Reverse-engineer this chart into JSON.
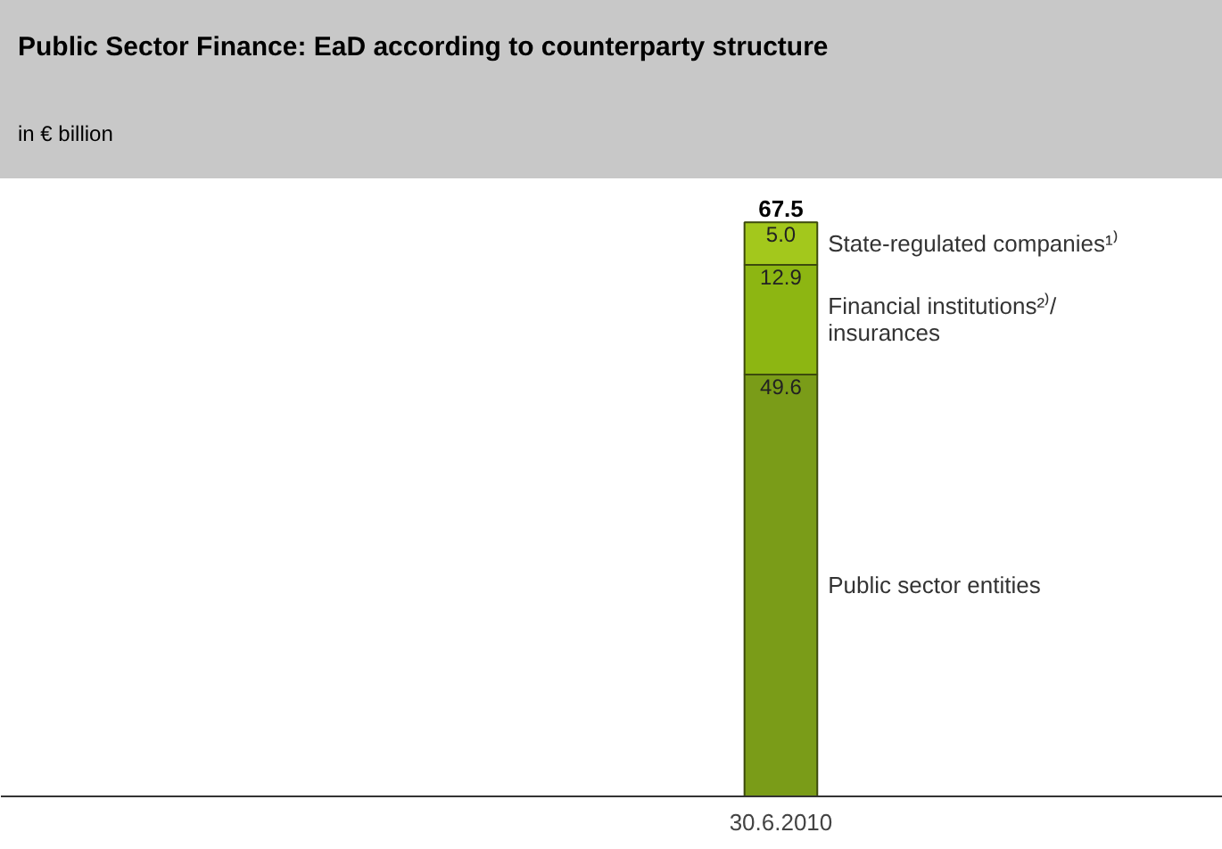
{
  "chart_data": {
    "type": "bar",
    "title": "Public Sector Finance: EaD according to counterparty structure",
    "subtitle": "in € billion",
    "categories": [
      "30.6.2010"
    ],
    "stacked": true,
    "totals": [
      "67.5"
    ],
    "grid": false,
    "series": [
      {
        "name": "Public sector entities",
        "color": "#7a9c18",
        "values": [
          49.6
        ],
        "value_labels": [
          "49.6"
        ]
      },
      {
        "name": "Financial institutions²⁾/\ninsurances",
        "color": "#8db612",
        "values": [
          12.9
        ],
        "value_labels": [
          "12.9"
        ]
      },
      {
        "name": "State-regulated companies¹⁾",
        "color": "#a3c81c",
        "values": [
          5.0
        ],
        "value_labels": [
          "5.0"
        ]
      }
    ]
  }
}
